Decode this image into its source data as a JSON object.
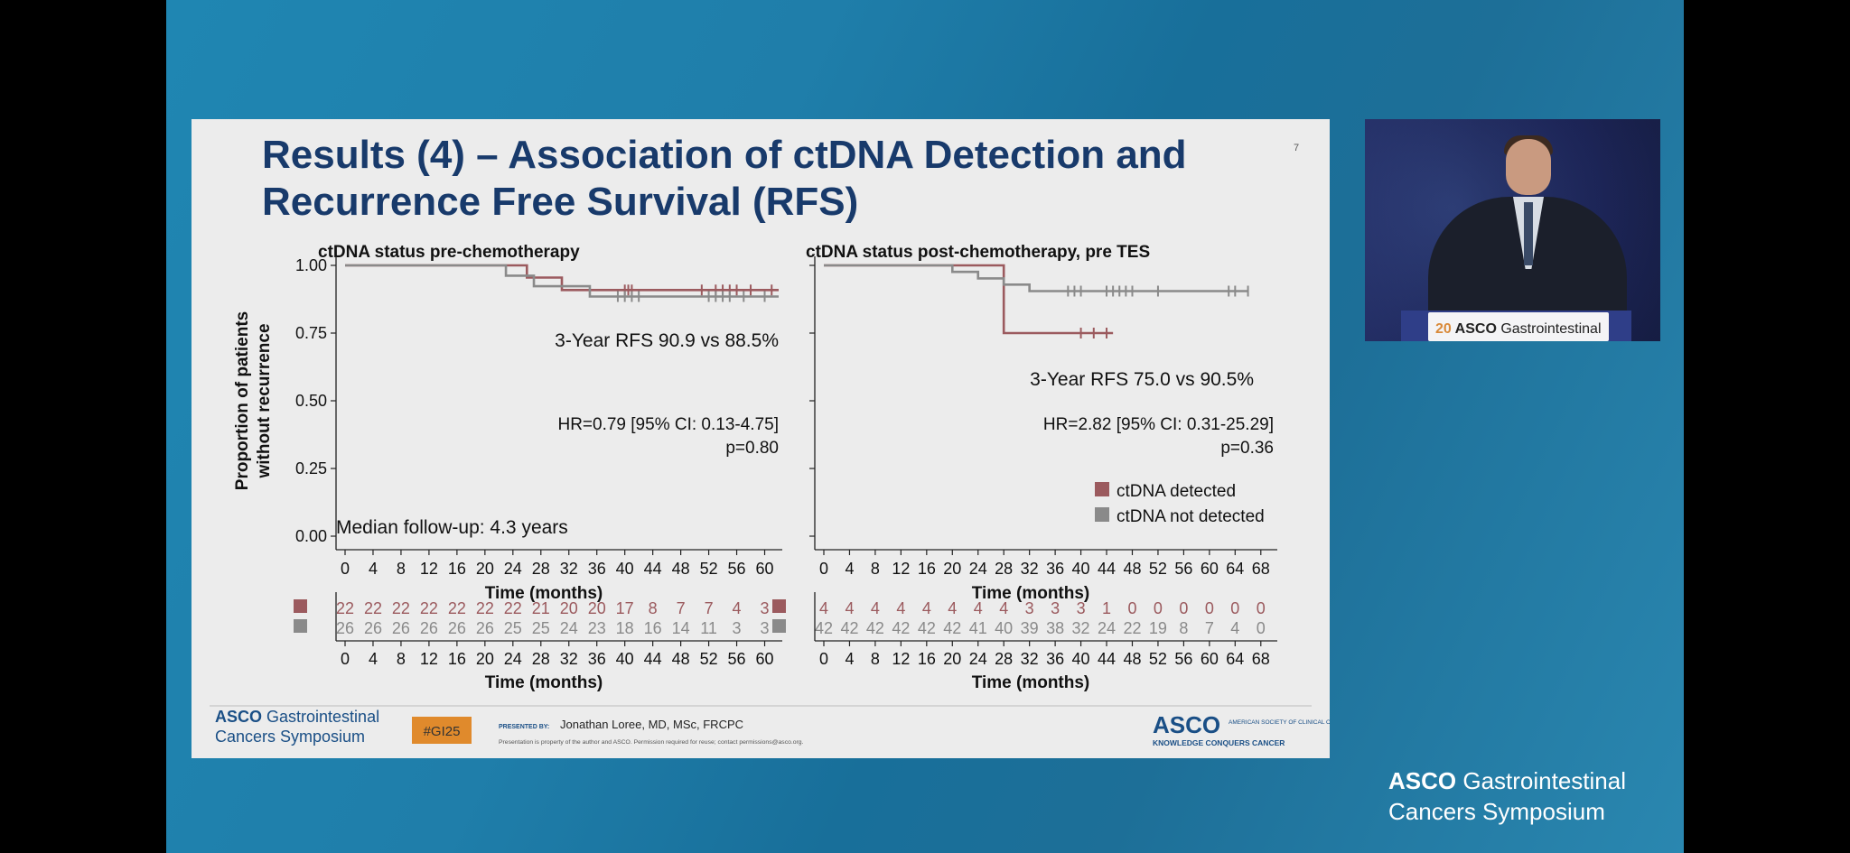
{
  "slide": {
    "title": "Results (4) – Association of ctDNA Detection and Recurrence Free Survival (RFS)",
    "number": "7"
  },
  "colors": {
    "detected": "#9b5a5e",
    "not_detected": "#8a8a8a",
    "title": "#183a6b",
    "badge": "#e08a2c"
  },
  "chart_data": [
    {
      "type": "line",
      "subtitle": "ctDNA status pre-chemotherapy",
      "xlabel": "Time (months)",
      "ylabel": "Proportion of patients without recurrence",
      "xlim": [
        0,
        62
      ],
      "ylim": [
        0,
        1
      ],
      "xticks": [
        0,
        4,
        8,
        12,
        16,
        20,
        24,
        28,
        32,
        36,
        40,
        44,
        48,
        52,
        56,
        60
      ],
      "yticks": [
        "0.00",
        "0.25",
        "0.50",
        "0.75",
        "1.00"
      ],
      "annotation_rfs": "3-Year RFS 90.9 vs 88.5%",
      "annotation_hr": "HR=0.79 [95% CI: 0.13-4.75]",
      "annotation_p": "p=0.80",
      "annotation_followup": "Median follow-up: 4.3 years",
      "series": [
        {
          "color_key": "detected",
          "steps": [
            [
              0,
              1.0
            ],
            [
              26,
              1.0
            ],
            [
              26,
              0.955
            ],
            [
              31,
              0.955
            ],
            [
              31,
              0.909
            ],
            [
              62,
              0.909
            ]
          ],
          "censor": [
            40,
            40.5,
            41,
            51,
            53,
            54,
            55,
            56,
            58,
            61
          ]
        },
        {
          "color_key": "not_detected",
          "steps": [
            [
              0,
              1.0
            ],
            [
              23,
              1.0
            ],
            [
              23,
              0.962
            ],
            [
              27,
              0.962
            ],
            [
              27,
              0.923
            ],
            [
              35,
              0.923
            ],
            [
              35,
              0.885
            ],
            [
              62,
              0.885
            ]
          ],
          "censor": [
            39,
            40,
            41,
            42,
            52,
            53,
            54,
            55,
            57,
            60
          ]
        }
      ],
      "risk_table": {
        "detected": [
          "22",
          "22",
          "22",
          "22",
          "22",
          "22",
          "22",
          "21",
          "20",
          "20",
          "17",
          "8",
          "7",
          "7",
          "4",
          "3"
        ],
        "not_detected": [
          "26",
          "26",
          "26",
          "26",
          "26",
          "26",
          "25",
          "25",
          "24",
          "23",
          "18",
          "16",
          "14",
          "11",
          "3",
          "3"
        ]
      }
    },
    {
      "type": "line",
      "subtitle": "ctDNA status post-chemotherapy, pre TES",
      "xlabel": "Time (months)",
      "ylabel": "",
      "xlim": [
        0,
        70
      ],
      "ylim": [
        0,
        1
      ],
      "xticks": [
        0,
        4,
        8,
        12,
        16,
        20,
        24,
        28,
        32,
        36,
        40,
        44,
        48,
        52,
        56,
        60,
        64,
        68
      ],
      "annotation_rfs": "3-Year RFS 75.0 vs 90.5%",
      "annotation_hr": "HR=2.82 [95% CI: 0.31-25.29]",
      "annotation_p": "p=0.36",
      "legend": [
        "ctDNA detected",
        "ctDNA not detected"
      ],
      "legend_position": "bottom-right",
      "series": [
        {
          "color_key": "detected",
          "steps": [
            [
              0,
              1.0
            ],
            [
              28,
              1.0
            ],
            [
              28,
              0.75
            ],
            [
              45,
              0.75
            ]
          ],
          "censor": [
            40,
            42,
            44
          ]
        },
        {
          "color_key": "not_detected",
          "steps": [
            [
              0,
              1.0
            ],
            [
              20,
              1.0
            ],
            [
              20,
              0.976
            ],
            [
              24,
              0.976
            ],
            [
              24,
              0.952
            ],
            [
              28,
              0.952
            ],
            [
              28,
              0.929
            ],
            [
              32,
              0.929
            ],
            [
              32,
              0.905
            ],
            [
              66,
              0.905
            ]
          ],
          "censor": [
            38,
            39,
            40,
            44,
            45,
            46,
            47,
            48,
            52,
            63,
            64,
            66
          ]
        }
      ],
      "risk_table": {
        "detected": [
          "4",
          "4",
          "4",
          "4",
          "4",
          "4",
          "4",
          "4",
          "3",
          "3",
          "3",
          "1",
          "0",
          "0",
          "0",
          "0",
          "0",
          "0"
        ],
        "not_detected": [
          "42",
          "42",
          "42",
          "42",
          "42",
          "42",
          "41",
          "40",
          "39",
          "38",
          "32",
          "24",
          "22",
          "19",
          "8",
          "7",
          "4",
          "0"
        ]
      }
    }
  ],
  "footer": {
    "asco_bold": "ASCO",
    "asco_rest": " Gastrointestinal",
    "asco_line2": "Cancers Symposium",
    "badge": "#GI25",
    "presented_by_label": "PRESENTED BY:",
    "presenter": "Jonathan Loree, MD, MSc, FRCPC",
    "disclaimer": "Presentation is property of the author and ASCO. Permission required for reuse; contact permissions@asco.org.",
    "asco_logo": "ASCO",
    "asco_society": "AMERICAN SOCIETY OF CLINICAL ONCOLOGY",
    "asco_tagline": "KNOWLEDGE CONQUERS CANCER"
  },
  "camera": {
    "podium_year": "20",
    "podium_asco": "ASCO",
    "podium_rest": " Gastrointestinal"
  },
  "corner": {
    "bold": "ASCO",
    "rest": " Gastrointestinal",
    "line2": "Cancers Symposium"
  }
}
